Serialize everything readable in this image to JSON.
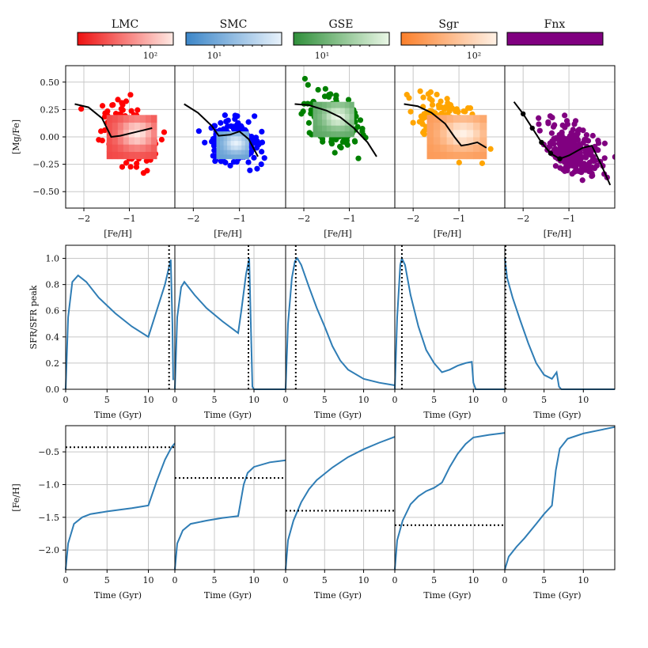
{
  "chart_data": {
    "type": "multi-panel",
    "columns": [
      {
        "name": "LMC",
        "colorbar": {
          "start": "#ee1111",
          "end": "#ffe9e3",
          "tick": "10²"
        },
        "point_color": "#ff0000",
        "scatter_center": {
          "x": -1.0,
          "y": 0.02
        },
        "scatter_spread": {
          "x": 0.42,
          "y": 0.18
        },
        "scatter_slope": -0.18,
        "hist_range": {
          "x": [
            -1.5,
            -0.4
          ],
          "y": [
            -0.2,
            0.2
          ]
        },
        "trend": [
          [
            -2.2,
            0.3
          ],
          [
            -1.9,
            0.27
          ],
          [
            -1.6,
            0.17
          ],
          [
            -1.4,
            0.0
          ],
          [
            -1.2,
            0.01
          ],
          [
            -1.0,
            0.03
          ],
          [
            -0.7,
            0.06
          ],
          [
            -0.5,
            0.08
          ]
        ],
        "sfr": [
          [
            0,
            0
          ],
          [
            0.3,
            0.55
          ],
          [
            0.8,
            0.82
          ],
          [
            1.5,
            0.87
          ],
          [
            2.5,
            0.82
          ],
          [
            4,
            0.7
          ],
          [
            6,
            0.58
          ],
          [
            8,
            0.48
          ],
          [
            10,
            0.4
          ],
          [
            11,
            0.6
          ],
          [
            12,
            0.8
          ],
          [
            12.7,
            0.99
          ],
          [
            12.9,
            0.5
          ],
          [
            13,
            0.07
          ]
        ],
        "sfr_vline": 12.5,
        "sfr_xmax": 13.2,
        "feh": [
          [
            0,
            -2.3
          ],
          [
            0.3,
            -1.9
          ],
          [
            1,
            -1.6
          ],
          [
            2,
            -1.5
          ],
          [
            3,
            -1.45
          ],
          [
            5,
            -1.41
          ],
          [
            8,
            -1.36
          ],
          [
            10,
            -1.32
          ],
          [
            11,
            -0.95
          ],
          [
            12,
            -0.62
          ],
          [
            12.8,
            -0.43
          ],
          [
            13.2,
            -0.37
          ]
        ],
        "feh_hline": -0.43,
        "feh_xmax": 13.2
      },
      {
        "name": "SMC",
        "colorbar": {
          "start": "#3c86c8",
          "end": "#e8f2fb",
          "tick": "10¹"
        },
        "point_color": "#0000ff",
        "scatter_center": {
          "x": -1.1,
          "y": -0.05
        },
        "scatter_spread": {
          "x": 0.38,
          "y": 0.15
        },
        "scatter_slope": -0.1,
        "hist_range": {
          "x": [
            -1.5,
            -0.8
          ],
          "y": [
            -0.2,
            0.05
          ]
        },
        "trend": [
          [
            -2.2,
            0.3
          ],
          [
            -1.9,
            0.22
          ],
          [
            -1.6,
            0.1
          ],
          [
            -1.45,
            0.01
          ],
          [
            -1.2,
            0.02
          ],
          [
            -1.0,
            0.05
          ],
          [
            -0.8,
            -0.02
          ],
          [
            -0.6,
            -0.18
          ]
        ],
        "sfr": [
          [
            0,
            0
          ],
          [
            0.3,
            0.55
          ],
          [
            0.8,
            0.78
          ],
          [
            1.2,
            0.82
          ],
          [
            2.5,
            0.72
          ],
          [
            4,
            0.62
          ],
          [
            6,
            0.52
          ],
          [
            8,
            0.43
          ],
          [
            8.4,
            0.6
          ],
          [
            9,
            0.88
          ],
          [
            9.4,
            1.0
          ],
          [
            9.6,
            0.5
          ],
          [
            9.8,
            0.02
          ],
          [
            10,
            0.0
          ],
          [
            14,
            0.0
          ]
        ],
        "sfr_vline": 9.3,
        "sfr_xmax": 14,
        "feh": [
          [
            0,
            -2.3
          ],
          [
            0.3,
            -1.9
          ],
          [
            1,
            -1.7
          ],
          [
            2,
            -1.6
          ],
          [
            4,
            -1.55
          ],
          [
            6,
            -1.51
          ],
          [
            8,
            -1.48
          ],
          [
            8.7,
            -1.0
          ],
          [
            9.2,
            -0.82
          ],
          [
            10,
            -0.73
          ],
          [
            12,
            -0.66
          ],
          [
            14,
            -0.63
          ]
        ],
        "feh_hline": -0.9,
        "feh_xmax": 14
      },
      {
        "name": "GSE",
        "colorbar": {
          "start": "#2f8f3a",
          "end": "#eaf7e6",
          "tick": "10¹"
        },
        "point_color": "#008000",
        "scatter_center": {
          "x": -1.35,
          "y": 0.15
        },
        "scatter_spread": {
          "x": 0.45,
          "y": 0.16
        },
        "scatter_slope": -0.18,
        "hist_range": {
          "x": [
            -1.8,
            -0.9
          ],
          "y": [
            0.0,
            0.32
          ]
        },
        "trend": [
          [
            -2.2,
            0.3
          ],
          [
            -1.9,
            0.29
          ],
          [
            -1.5,
            0.24
          ],
          [
            -1.2,
            0.18
          ],
          [
            -0.9,
            0.08
          ],
          [
            -0.6,
            -0.05
          ],
          [
            -0.4,
            -0.18
          ]
        ],
        "sfr": [
          [
            0,
            0
          ],
          [
            0.3,
            0.5
          ],
          [
            0.8,
            0.85
          ],
          [
            1.2,
            0.98
          ],
          [
            1.5,
            1.0
          ],
          [
            2,
            0.95
          ],
          [
            3,
            0.78
          ],
          [
            4,
            0.62
          ],
          [
            5,
            0.48
          ],
          [
            6,
            0.33
          ],
          [
            7,
            0.22
          ],
          [
            8,
            0.15
          ],
          [
            10,
            0.08
          ],
          [
            12,
            0.05
          ],
          [
            14,
            0.03
          ]
        ],
        "sfr_vline": 1.3,
        "sfr_xmax": 14,
        "feh": [
          [
            0,
            -2.3
          ],
          [
            0.3,
            -1.85
          ],
          [
            1,
            -1.55
          ],
          [
            2,
            -1.27
          ],
          [
            3,
            -1.07
          ],
          [
            4,
            -0.93
          ],
          [
            6,
            -0.74
          ],
          [
            8,
            -0.58
          ],
          [
            10,
            -0.46
          ],
          [
            12,
            -0.36
          ],
          [
            14,
            -0.27
          ]
        ],
        "feh_hline": -1.4,
        "feh_xmax": 14
      },
      {
        "name": "Sgr",
        "colorbar": {
          "start": "#fb7f2a",
          "end": "#fff1e5",
          "tick": "10²"
        },
        "point_color": "#ffa500",
        "scatter_center": {
          "x": -1.25,
          "y": 0.1
        },
        "scatter_spread": {
          "x": 0.5,
          "y": 0.16
        },
        "scatter_slope": -0.2,
        "hist_range": {
          "x": [
            -1.7,
            -0.4
          ],
          "y": [
            -0.2,
            0.2
          ]
        },
        "trend": [
          [
            -2.2,
            0.3
          ],
          [
            -1.9,
            0.28
          ],
          [
            -1.6,
            0.22
          ],
          [
            -1.3,
            0.12
          ],
          [
            -1.1,
            0.0
          ],
          [
            -0.95,
            -0.08
          ],
          [
            -0.8,
            -0.07
          ],
          [
            -0.6,
            -0.05
          ],
          [
            -0.4,
            -0.1
          ]
        ],
        "sfr": [
          [
            0,
            0
          ],
          [
            0.3,
            0.55
          ],
          [
            0.7,
            0.95
          ],
          [
            0.9,
            1.0
          ],
          [
            1.3,
            0.95
          ],
          [
            2,
            0.72
          ],
          [
            3,
            0.48
          ],
          [
            4,
            0.3
          ],
          [
            5,
            0.2
          ],
          [
            6,
            0.13
          ],
          [
            7,
            0.15
          ],
          [
            8,
            0.18
          ],
          [
            9,
            0.2
          ],
          [
            9.8,
            0.21
          ],
          [
            10,
            0.05
          ],
          [
            10.3,
            0.0
          ],
          [
            14,
            0.0
          ]
        ],
        "sfr_vline": 0.9,
        "sfr_xmax": 14,
        "feh": [
          [
            0,
            -2.3
          ],
          [
            0.3,
            -1.85
          ],
          [
            1,
            -1.55
          ],
          [
            2,
            -1.3
          ],
          [
            3,
            -1.18
          ],
          [
            4,
            -1.1
          ],
          [
            5,
            -1.05
          ],
          [
            6,
            -0.97
          ],
          [
            7,
            -0.73
          ],
          [
            8,
            -0.53
          ],
          [
            9,
            -0.38
          ],
          [
            10,
            -0.28
          ],
          [
            12,
            -0.24
          ],
          [
            14,
            -0.21
          ]
        ],
        "feh_hline": -1.62,
        "feh_xmax": 14
      },
      {
        "name": "Fnx",
        "colorbar": {
          "start": "#800080",
          "end": "#800080",
          "tick": ""
        },
        "point_color": "#800080",
        "scatter_center": {
          "x": -0.9,
          "y": -0.12
        },
        "scatter_spread": {
          "x": 0.42,
          "y": 0.16
        },
        "scatter_slope": -0.2,
        "hist_range": null,
        "trend": [
          [
            -2.2,
            0.32
          ],
          [
            -2.0,
            0.21
          ],
          [
            -1.8,
            0.08
          ],
          [
            -1.6,
            -0.05
          ],
          [
            -1.4,
            -0.15
          ],
          [
            -1.2,
            -0.2
          ],
          [
            -1.0,
            -0.17
          ],
          [
            -0.7,
            -0.1
          ],
          [
            -0.5,
            -0.08
          ],
          [
            -0.3,
            -0.25
          ],
          [
            -0.1,
            -0.44
          ]
        ],
        "sfr": [
          [
            0,
            1.0
          ],
          [
            0.3,
            0.85
          ],
          [
            1,
            0.7
          ],
          [
            2,
            0.52
          ],
          [
            3,
            0.35
          ],
          [
            4,
            0.2
          ],
          [
            5,
            0.11
          ],
          [
            6,
            0.08
          ],
          [
            6.6,
            0.13
          ],
          [
            6.9,
            0.02
          ],
          [
            7.2,
            0.0
          ],
          [
            14,
            0.0
          ]
        ],
        "sfr_vline": 0.1,
        "sfr_xmax": 14,
        "feh": [
          [
            0,
            -2.3
          ],
          [
            0.5,
            -2.1
          ],
          [
            1.5,
            -1.95
          ],
          [
            2.5,
            -1.82
          ],
          [
            4,
            -1.6
          ],
          [
            5,
            -1.45
          ],
          [
            6,
            -1.32
          ],
          [
            6.5,
            -0.78
          ],
          [
            7,
            -0.45
          ],
          [
            8,
            -0.3
          ],
          [
            10,
            -0.22
          ],
          [
            12,
            -0.17
          ],
          [
            14,
            -0.12
          ]
        ],
        "feh_hline": null,
        "feh_xmax": 14
      }
    ],
    "row1": {
      "ylabel": "[Mg/Fe]",
      "xlabel": "[Fe/H]",
      "xlim": [
        -2.4,
        0.0
      ],
      "ylim": [
        -0.65,
        0.65
      ],
      "xticks": [
        -2,
        -1
      ],
      "xtick_labels": [
        "−2",
        "−1"
      ],
      "yticks": [
        0.5,
        0.25,
        0.0,
        -0.25,
        -0.5
      ],
      "ytick_labels": [
        "0.50",
        "0.25",
        "0.00",
        "−0.25",
        "−0.50"
      ]
    },
    "row2": {
      "ylabel": "SFR/SFR peak",
      "xlabel": "Time (Gyr)",
      "ylim": [
        0,
        1.1
      ],
      "yticks": [
        0.0,
        0.2,
        0.4,
        0.6,
        0.8,
        1.0
      ],
      "ytick_labels": [
        "0.0",
        "0.2",
        "0.4",
        "0.6",
        "0.8",
        "1.0"
      ],
      "xticks": [
        0,
        5,
        10
      ],
      "xtick_labels": [
        "0",
        "5",
        "10"
      ]
    },
    "row3": {
      "ylabel": "[Fe/H]",
      "xlabel": "Time (Gyr)",
      "ylim": [
        -2.3,
        -0.1
      ],
      "yticks": [
        -0.5,
        -1.0,
        -1.5,
        -2.0
      ],
      "ytick_labels": [
        "−0.5",
        "−1.0",
        "−1.5",
        "−2.0"
      ],
      "xticks": [
        0,
        5,
        10
      ],
      "xtick_labels": [
        "0",
        "5",
        "10"
      ]
    },
    "line_color": "#2f7db5"
  }
}
